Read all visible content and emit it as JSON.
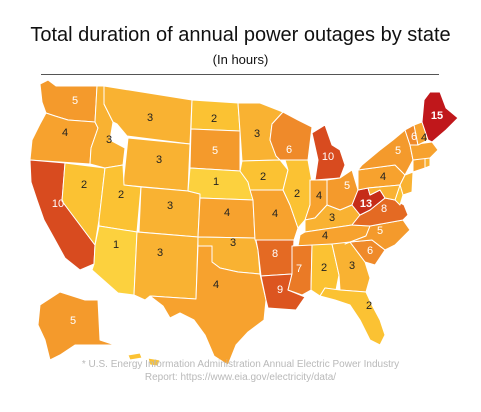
{
  "title": "Total duration of annual power outages by state",
  "subtitle": "(In hours)",
  "source_line1": "* U.S. Energy Information Administration Annual Electric Power Industry",
  "source_line2": "Report: https://www.eia.gov/electricity/data/",
  "colors": {
    "c1": "#fcd13e",
    "c2": "#fbc233",
    "c3": "#f9b232",
    "c4": "#f7a22e",
    "c5": "#f49a2c",
    "c6": "#ef8a2a",
    "c7": "#ea7a26",
    "c8": "#e46a23",
    "c9": "#dc5520",
    "c10": "#d84b1f",
    "c13": "#c62d18",
    "c15": "#c0171b",
    "water": "#ffffff",
    "border": "#ffffff"
  },
  "states": [
    {
      "id": "WA",
      "value": "5"
    },
    {
      "id": "OR",
      "value": "4"
    },
    {
      "id": "CA",
      "value": "10"
    },
    {
      "id": "NV",
      "value": "2"
    },
    {
      "id": "ID",
      "value": "3"
    },
    {
      "id": "MT",
      "value": "3"
    },
    {
      "id": "WY",
      "value": "3"
    },
    {
      "id": "UT",
      "value": "2"
    },
    {
      "id": "AZ",
      "value": "1"
    },
    {
      "id": "CO",
      "value": "3"
    },
    {
      "id": "NM",
      "value": "3"
    },
    {
      "id": "ND",
      "value": "2"
    },
    {
      "id": "SD",
      "value": "5"
    },
    {
      "id": "NE",
      "value": "1"
    },
    {
      "id": "KS",
      "value": "4"
    },
    {
      "id": "OK",
      "value": "3"
    },
    {
      "id": "TX",
      "value": "4"
    },
    {
      "id": "MN",
      "value": "3"
    },
    {
      "id": "IA",
      "value": "2"
    },
    {
      "id": "MO",
      "value": "4"
    },
    {
      "id": "AR",
      "value": "8"
    },
    {
      "id": "LA",
      "value": "9"
    },
    {
      "id": "WI",
      "value": "6"
    },
    {
      "id": "IL",
      "value": "2"
    },
    {
      "id": "MI",
      "value": "10"
    },
    {
      "id": "IN",
      "value": "4"
    },
    {
      "id": "OH",
      "value": "5"
    },
    {
      "id": "KY",
      "value": "3"
    },
    {
      "id": "TN",
      "value": "4"
    },
    {
      "id": "MS",
      "value": "7"
    },
    {
      "id": "AL",
      "value": "2"
    },
    {
      "id": "GA",
      "value": "3"
    },
    {
      "id": "FL",
      "value": "2"
    },
    {
      "id": "SC",
      "value": "6"
    },
    {
      "id": "NC",
      "value": "5"
    },
    {
      "id": "VA",
      "value": "8"
    },
    {
      "id": "WV",
      "value": "13"
    },
    {
      "id": "PA",
      "value": "4"
    },
    {
      "id": "NY",
      "value": "5"
    },
    {
      "id": "VT",
      "value": "6"
    },
    {
      "id": "NH",
      "value": "4"
    },
    {
      "id": "ME",
      "value": "15"
    },
    {
      "id": "AK",
      "value": "5"
    }
  ]
}
